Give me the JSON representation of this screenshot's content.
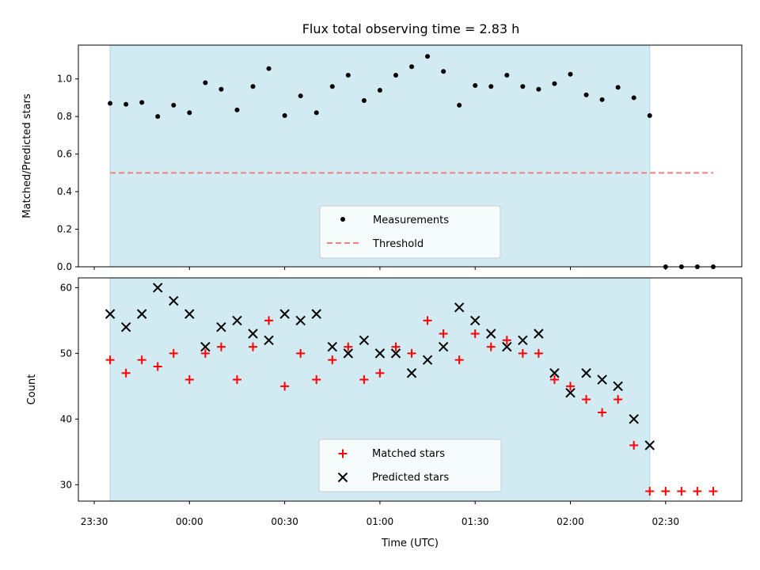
{
  "chart_data": [
    {
      "type": "scatter",
      "title": "Flux total observing time = 2.83 h",
      "xlabel": "",
      "ylabel": "Matched/Predicted stars",
      "ylim": [
        0.0,
        1.18
      ],
      "yticks": [
        "0.0",
        "0.2",
        "0.4",
        "0.6",
        "0.8",
        "1.0"
      ],
      "ytick_values": [
        0.0,
        0.2,
        0.4,
        0.6,
        0.8,
        1.0
      ],
      "xlim_minutes": [
        -35,
        174
      ],
      "shaded_interval_minutes": [
        -25,
        145
      ],
      "shade_color": "#add8e6",
      "threshold": {
        "name": "Threshold",
        "value": 0.5,
        "x_range_minutes": [
          -25,
          165
        ],
        "color": "#f08080"
      },
      "legend": {
        "placement": "lower-center",
        "entries": [
          "Measurements",
          "Threshold"
        ]
      },
      "series": [
        {
          "name": "Measurements",
          "marker": "dot",
          "color": "#000000",
          "x_minutes": [
            -25,
            -20,
            -15,
            -10,
            -5,
            0,
            5,
            10,
            15,
            20,
            25,
            30,
            35,
            40,
            45,
            50,
            55,
            60,
            65,
            70,
            75,
            80,
            85,
            90,
            95,
            100,
            105,
            110,
            115,
            120,
            125,
            130,
            135,
            140,
            145,
            150,
            155,
            160,
            165
          ],
          "values": [
            0.87,
            0.865,
            0.875,
            0.8,
            0.86,
            0.82,
            0.98,
            0.945,
            0.835,
            0.96,
            1.055,
            0.805,
            0.91,
            0.82,
            0.96,
            1.02,
            0.885,
            0.94,
            1.02,
            1.065,
            1.12,
            1.04,
            0.86,
            0.965,
            0.96,
            1.02,
            0.96,
            0.945,
            0.975,
            1.025,
            0.915,
            0.89,
            0.955,
            0.9,
            0.805,
            0.0,
            0.0,
            0.0,
            0.0
          ]
        }
      ]
    },
    {
      "type": "scatter",
      "title": "",
      "xlabel": "Time (UTC)",
      "ylabel": "Count",
      "ylim": [
        27.5,
        61.5
      ],
      "yticks": [
        "30",
        "40",
        "50",
        "60"
      ],
      "ytick_values": [
        30,
        40,
        50,
        60
      ],
      "xlim_minutes": [
        -35,
        174
      ],
      "xtick_minutes": [
        -30,
        0,
        30,
        60,
        90,
        120,
        150
      ],
      "xticks": [
        "23:30",
        "00:00",
        "00:30",
        "01:00",
        "01:30",
        "02:00",
        "02:30"
      ],
      "shaded_interval_minutes": [
        -25,
        145
      ],
      "legend": {
        "placement": "lower-center",
        "entries": [
          "Matched stars",
          "Predicted stars"
        ]
      },
      "series": [
        {
          "name": "Matched stars",
          "marker": "plus",
          "color": "#ff0000",
          "x_minutes": [
            -25,
            -20,
            -15,
            -10,
            -5,
            0,
            5,
            10,
            15,
            20,
            25,
            30,
            35,
            40,
            45,
            50,
            55,
            60,
            65,
            70,
            75,
            80,
            85,
            90,
            95,
            100,
            105,
            110,
            115,
            120,
            125,
            130,
            135,
            140,
            145,
            150,
            155,
            160,
            165
          ],
          "values": [
            49,
            47,
            49,
            48,
            50,
            46,
            50,
            51,
            46,
            51,
            55,
            45,
            50,
            46,
            49,
            51,
            46,
            47,
            51,
            50,
            55,
            53,
            49,
            53,
            51,
            52,
            50,
            50,
            46,
            45,
            43,
            41,
            43,
            36,
            29,
            29,
            29,
            29,
            29
          ]
        },
        {
          "name": "Predicted stars",
          "marker": "x",
          "color": "#000000",
          "x_minutes": [
            -25,
            -20,
            -15,
            -10,
            -5,
            0,
            5,
            10,
            15,
            20,
            25,
            30,
            35,
            40,
            45,
            50,
            55,
            60,
            65,
            70,
            75,
            80,
            85,
            90,
            95,
            100,
            105,
            110,
            115,
            120,
            125,
            130,
            135,
            140,
            145
          ],
          "values": [
            56,
            54,
            56,
            60,
            58,
            56,
            51,
            54,
            55,
            53,
            52,
            56,
            55,
            56,
            51,
            50,
            52,
            50,
            50,
            47,
            49,
            51,
            57,
            55,
            53,
            51,
            52,
            53,
            47,
            44,
            47,
            46,
            45,
            40,
            36
          ]
        }
      ]
    }
  ]
}
